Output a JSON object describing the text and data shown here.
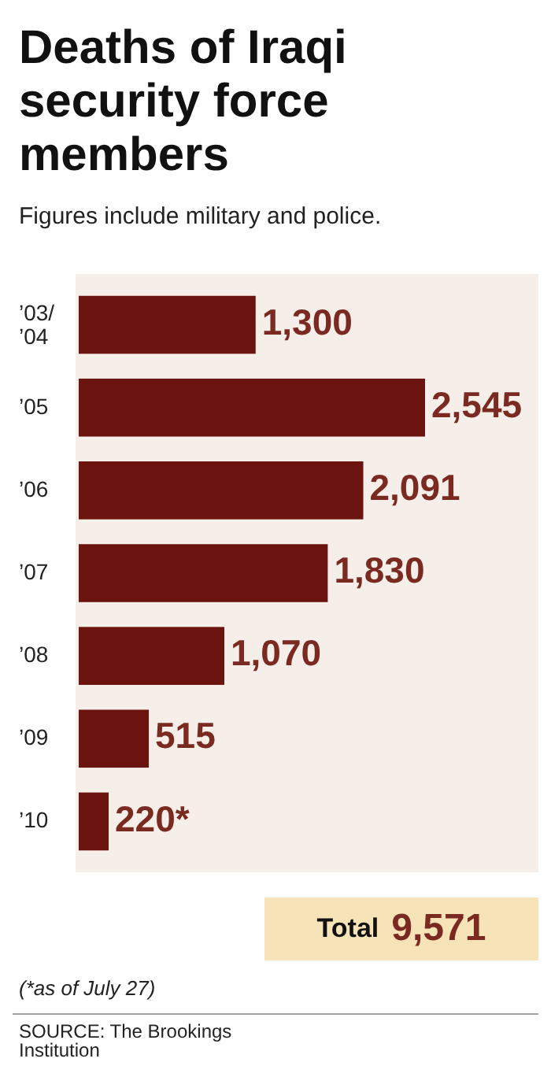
{
  "chart_data": {
    "type": "bar",
    "orientation": "horizontal",
    "title": "Deaths of Iraqi security force members",
    "subtitle": "Figures include military and police.",
    "categories": [
      "’03/\n’04",
      "’05",
      "’06",
      "’07",
      "’08",
      "’09",
      "’10"
    ],
    "values": [
      1300,
      2545,
      2091,
      1830,
      1070,
      515,
      220
    ],
    "value_labels": [
      "1,300",
      "2,545",
      "2,091",
      "1,830",
      "1,070",
      "515",
      "220*"
    ],
    "color": "#6b140f",
    "annotations": [
      "Total 9,571",
      "(*as of July 27)",
      "SOURCE: The Brookings Institution"
    ]
  }
}
